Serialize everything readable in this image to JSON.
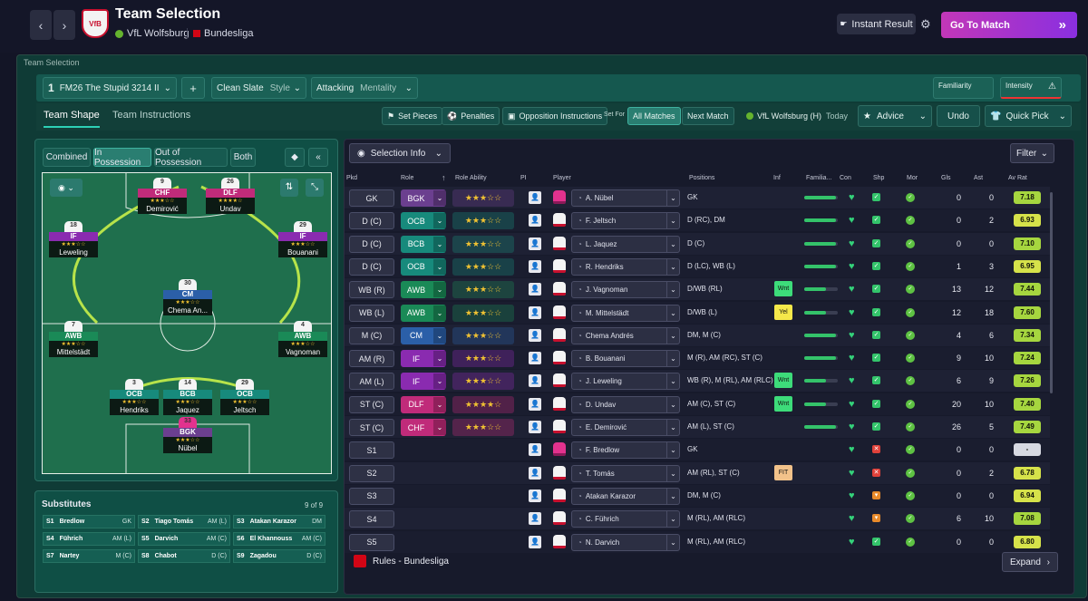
{
  "header": {
    "title": "Team Selection",
    "opponent": "VfL Wolfsburg",
    "league": "Bundesliga",
    "crest_text": "VfB",
    "back": "‹",
    "forward": "›",
    "instant_result": "Instant Result",
    "go_to_match": "Go To Match",
    "go_arrows": "»"
  },
  "page_label": "Team Selection",
  "tactic": {
    "number": "1",
    "name": "FM26 The Stupid 3214 II",
    "add": "+",
    "style_value": "Clean Slate",
    "style_label": "Style",
    "mentality_value": "Attacking",
    "mentality_label": "Mentality",
    "familiarity": "Familiarity",
    "intensity": "Intensity"
  },
  "tabs": {
    "team_shape": "Team Shape",
    "team_instructions": "Team Instructions"
  },
  "toolbar": {
    "set_pieces": "Set Pieces",
    "penalties": "Penalties",
    "opposition": "Opposition Instructions",
    "set_for": "Set For",
    "all_matches": "All Matches",
    "next_match": "Next Match",
    "fixture": "VfL Wolfsburg (H)",
    "fixture_when": "Today",
    "advice": "Advice",
    "undo": "Undo",
    "quick_pick": "Quick Pick"
  },
  "phase_tabs": [
    "Combined",
    "In Possession",
    "Out of Possession",
    "Both"
  ],
  "pitch_players": [
    {
      "role": "CHF",
      "name": "Demirović",
      "num": "9",
      "stars": "★★★☆☆",
      "color": "#c02b7a"
    },
    {
      "role": "DLF",
      "name": "Undav",
      "num": "26",
      "stars": "★★★★☆",
      "color": "#c02b7a"
    },
    {
      "role": "IF",
      "name": "Leweling",
      "num": "18",
      "stars": "★★★☆☆",
      "color": "#8a2bb0"
    },
    {
      "role": "IF",
      "name": "Bouanani",
      "num": "29",
      "stars": "★★★☆☆",
      "color": "#8a2bb0"
    },
    {
      "role": "CM",
      "name": "Chema An...",
      "num": "30",
      "stars": "★★★☆☆",
      "color": "#2b5fa8"
    },
    {
      "role": "AWB",
      "name": "Mittelstädt",
      "num": "7",
      "stars": "★★★☆☆",
      "color": "#1a8a57"
    },
    {
      "role": "AWB",
      "name": "Vagnoman",
      "num": "4",
      "stars": "★★★☆☆",
      "color": "#1a8a57"
    },
    {
      "role": "OCB",
      "name": "Hendriks",
      "num": "3",
      "stars": "★★★☆☆",
      "color": "#178a7c"
    },
    {
      "role": "BCB",
      "name": "Jaquez",
      "num": "14",
      "stars": "★★★☆☆",
      "color": "#178a7c"
    },
    {
      "role": "OCB",
      "name": "Jeltsch",
      "num": "29",
      "stars": "★★★☆☆",
      "color": "#178a7c"
    },
    {
      "role": "BGK",
      "name": "Nübel",
      "num": "33",
      "stars": "★★★☆☆",
      "color": "#6b3f8f"
    }
  ],
  "subs": {
    "title": "Substitutes",
    "count": "9 of 9",
    "items": [
      {
        "slot": "S1",
        "name": "Bredlow",
        "pos": "GK"
      },
      {
        "slot": "S2",
        "name": "Tiago Tomás",
        "pos": "AM (L)"
      },
      {
        "slot": "S3",
        "name": "Atakan Karazor",
        "pos": "DM"
      },
      {
        "slot": "S4",
        "name": "Führich",
        "pos": "AM (L)"
      },
      {
        "slot": "S5",
        "name": "Darvich",
        "pos": "AM (C)"
      },
      {
        "slot": "S6",
        "name": "El Khannouss",
        "pos": "AM (C)"
      },
      {
        "slot": "S7",
        "name": "Nartey",
        "pos": "M (C)"
      },
      {
        "slot": "S8",
        "name": "Chabot",
        "pos": "D (C)"
      },
      {
        "slot": "S9",
        "name": "Zagadou",
        "pos": "D (C)"
      }
    ]
  },
  "selection": {
    "info": "Selection Info",
    "filter": "Filter",
    "rules": "Rules - Bundesliga",
    "expand": "Expand"
  },
  "columns": [
    "Pkd",
    "Role",
    "Role Ability",
    "PI",
    "Player",
    "Positions",
    "Inf",
    "Familia...",
    "Con",
    "Shp",
    "Mor",
    "Gls",
    "Ast",
    "Av Rat"
  ],
  "rows": [
    {
      "pkd": "GK",
      "role": "BGK",
      "rc": "#6b3f8f",
      "stars": "★★★☆☆",
      "player": "A. Nübel",
      "pos": "GK",
      "inf": "",
      "fam": 0.95,
      "shp": "ok",
      "gls": "0",
      "ast": "0",
      "rat": "7.18",
      "gk": true
    },
    {
      "pkd": "D (C)",
      "role": "OCB",
      "rc": "#178a7c",
      "stars": "★★★☆☆",
      "player": "F. Jeltsch",
      "pos": "D (RC), DM",
      "inf": "",
      "fam": 0.95,
      "shp": "ok",
      "gls": "0",
      "ast": "2",
      "rat": "6.93"
    },
    {
      "pkd": "D (C)",
      "role": "BCB",
      "rc": "#178a7c",
      "stars": "★★★☆☆",
      "player": "L. Jaquez",
      "pos": "D (C)",
      "inf": "",
      "fam": 0.95,
      "shp": "ok",
      "gls": "0",
      "ast": "0",
      "rat": "7.10"
    },
    {
      "pkd": "D (C)",
      "role": "OCB",
      "rc": "#178a7c",
      "stars": "★★★☆☆",
      "player": "R. Hendriks",
      "pos": "D (LC), WB (L)",
      "inf": "",
      "fam": 0.95,
      "shp": "ok",
      "gls": "1",
      "ast": "3",
      "rat": "6.95"
    },
    {
      "pkd": "WB (R)",
      "role": "AWB",
      "rc": "#1a8a57",
      "stars": "★★★☆☆",
      "player": "J. Vagnoman",
      "pos": "D/WB (RL)",
      "inf": "Wnt",
      "ic": "#3ddc7a",
      "fam": 0.65,
      "shp": "ok",
      "gls": "13",
      "ast": "12",
      "rat": "7.44"
    },
    {
      "pkd": "WB (L)",
      "role": "AWB",
      "rc": "#1a8a57",
      "stars": "★★★☆☆",
      "player": "M. Mittelstädt",
      "pos": "D/WB (L)",
      "inf": "Yel",
      "ic": "#f5e84a",
      "fam": 0.65,
      "shp": "ok",
      "gls": "12",
      "ast": "18",
      "rat": "7.60"
    },
    {
      "pkd": "M (C)",
      "role": "CM",
      "rc": "#2b5fa8",
      "stars": "★★★☆☆",
      "player": "Chema Andrés",
      "pos": "DM, M (C)",
      "inf": "",
      "fam": 0.95,
      "shp": "ok",
      "gls": "4",
      "ast": "6",
      "rat": "7.34"
    },
    {
      "pkd": "AM (R)",
      "role": "IF",
      "rc": "#8a2bb0",
      "stars": "★★★☆☆",
      "player": "B. Bouanani",
      "pos": "M (R), AM (RC), ST (C)",
      "inf": "",
      "fam": 0.95,
      "shp": "ok",
      "gls": "9",
      "ast": "10",
      "rat": "7.24"
    },
    {
      "pkd": "AM (L)",
      "role": "IF",
      "rc": "#8a2bb0",
      "stars": "★★★☆☆",
      "player": "J. Leweling",
      "pos": "WB (R), M (RL), AM (RLC)",
      "inf": "Wnt",
      "ic": "#3ddc7a",
      "fam": 0.65,
      "shp": "ok",
      "gls": "6",
      "ast": "9",
      "rat": "7.26"
    },
    {
      "pkd": "ST (C)",
      "role": "DLF",
      "rc": "#c02b7a",
      "stars": "★★★★☆",
      "player": "D. Undav",
      "pos": "AM (C), ST (C)",
      "inf": "Wnt",
      "ic": "#3ddc7a",
      "fam": 0.65,
      "shp": "ok",
      "gls": "20",
      "ast": "10",
      "rat": "7.40"
    },
    {
      "pkd": "ST (C)",
      "role": "CHF",
      "rc": "#c02b7a",
      "stars": "★★★☆☆",
      "player": "E. Demirović",
      "pos": "AM (L), ST (C)",
      "inf": "",
      "fam": 0.95,
      "shp": "ok",
      "gls": "26",
      "ast": "5",
      "rat": "7.49"
    },
    {
      "pkd": "S1",
      "role": "",
      "player": "F. Bredlow",
      "pos": "GK",
      "inf": "",
      "fam": 0,
      "shp": "bad",
      "gls": "0",
      "ast": "0",
      "rat": "-",
      "gk": true
    },
    {
      "pkd": "S2",
      "role": "",
      "player": "T. Tomás",
      "pos": "AM (RL), ST (C)",
      "inf": "FIT",
      "ic": "#f2c28a",
      "fam": 0,
      "shp": "bad",
      "gls": "0",
      "ast": "2",
      "rat": "6.78"
    },
    {
      "pkd": "S3",
      "role": "",
      "player": "Atakan Karazor",
      "pos": "DM, M (C)",
      "inf": "",
      "fam": 0,
      "shp": "warn",
      "gls": "0",
      "ast": "0",
      "rat": "6.94"
    },
    {
      "pkd": "S4",
      "role": "",
      "player": "C. Führich",
      "pos": "M (RL), AM (RLC)",
      "inf": "",
      "fam": 0,
      "shp": "warn",
      "gls": "6",
      "ast": "10",
      "rat": "7.08"
    },
    {
      "pkd": "S5",
      "role": "",
      "player": "N. Darvich",
      "pos": "M (RL), AM (RLC)",
      "inf": "",
      "fam": 0,
      "shp": "ok",
      "gls": "0",
      "ast": "0",
      "rat": "6.80"
    }
  ]
}
